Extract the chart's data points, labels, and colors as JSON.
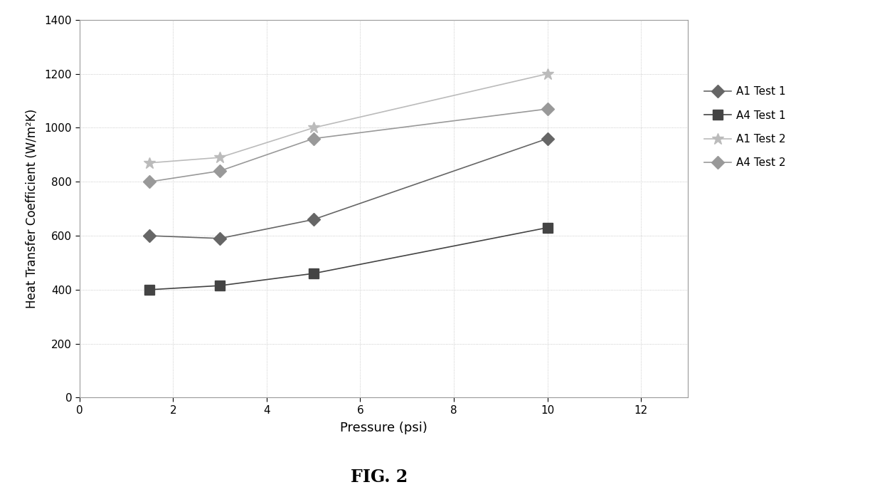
{
  "series": [
    {
      "label": "A1 Test 1",
      "x": [
        1.5,
        3,
        5,
        10
      ],
      "y": [
        600,
        590,
        660,
        960
      ],
      "color": "#666666",
      "marker": "D",
      "markersize": 9,
      "linestyle": "-",
      "linewidth": 1.2
    },
    {
      "label": "A4 Test 1",
      "x": [
        1.5,
        3,
        5,
        10
      ],
      "y": [
        400,
        415,
        460,
        630
      ],
      "color": "#444444",
      "marker": "s",
      "markersize": 10,
      "linestyle": "-",
      "linewidth": 1.2
    },
    {
      "label": "A1 Test 2",
      "x": [
        1.5,
        3,
        5,
        10
      ],
      "y": [
        870,
        890,
        1000,
        1200
      ],
      "color": "#bbbbbb",
      "marker": "*",
      "markersize": 12,
      "linestyle": "-",
      "linewidth": 1.2
    },
    {
      "label": "A4 Test 2",
      "x": [
        1.5,
        3,
        5,
        10
      ],
      "y": [
        800,
        840,
        960,
        1070
      ],
      "color": "#999999",
      "marker": "D",
      "markersize": 9,
      "linestyle": "-",
      "linewidth": 1.2
    }
  ],
  "xlabel": "Pressure (psi)",
  "ylabel": "Heat Transfer Coefficient (W/m²K)",
  "title": "FIG. 2",
  "xlim": [
    0,
    13
  ],
  "ylim": [
    0,
    1400
  ],
  "xticks": [
    0,
    2,
    4,
    6,
    8,
    10,
    12
  ],
  "yticks": [
    0,
    200,
    400,
    600,
    800,
    1000,
    1200,
    1400
  ],
  "background_color": "#ffffff",
  "xlabel_fontsize": 13,
  "ylabel_fontsize": 12,
  "title_fontsize": 17,
  "tick_fontsize": 11,
  "legend_fontsize": 11
}
